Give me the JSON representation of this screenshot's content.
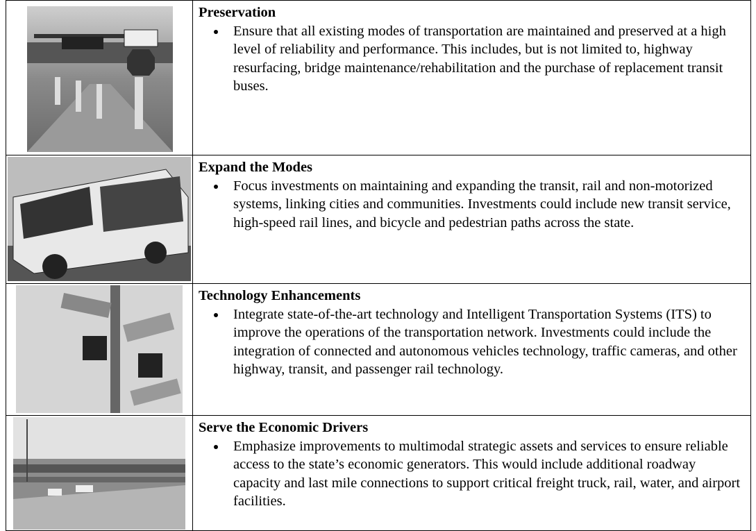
{
  "rows": [
    {
      "title": "Preservation",
      "bullets": [
        "Ensure that all existing modes of transportation are maintained and preserved at a high level of reliability and performance. This includes, but is not limited to, highway resurfacing, bridge maintenance/rehabilitation and the purchase of replacement transit buses."
      ]
    },
    {
      "title": "Expand the Modes",
      "bullets": [
        "Focus investments on maintaining and expanding the transit, rail and non-motorized systems, linking cities and communities. Investments could include new transit service, high-speed rail lines, and bicycle and pedestrian paths across the state."
      ]
    },
    {
      "title": "Technology Enhancements",
      "bullets": [
        "Integrate state-of-the-art technology and Intelligent Transportation Systems (ITS) to improve the operations of the transportation network. Investments could include the integration of connected and autonomous vehicles technology, traffic cameras, and other highway, transit, and passenger rail technology."
      ]
    },
    {
      "title": "Serve the Economic Drivers",
      "bullets": [
        "Emphasize improvements to multimodal strategic assets and services to ensure reliable access to the state’s economic generators. This would include additional roadway capacity and last mile connections to support critical freight truck, rail, water, and airport facilities."
      ]
    }
  ]
}
